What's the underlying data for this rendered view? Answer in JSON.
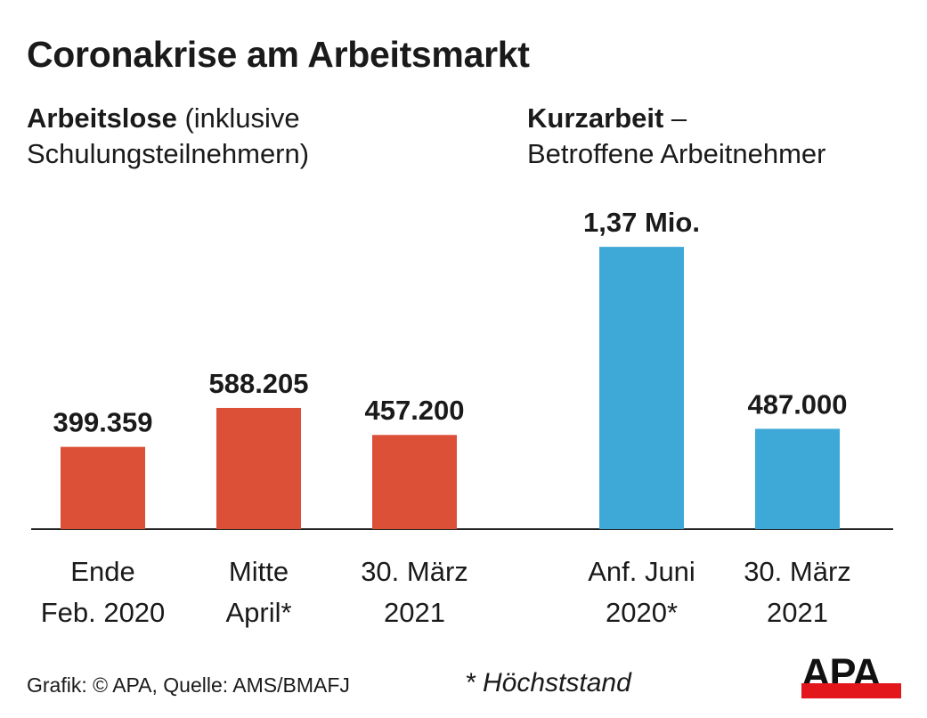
{
  "chart_data": [
    {
      "type": "bar",
      "subtitle_bold": "Arbeitslose",
      "subtitle_rest": " (inklusive",
      "subtitle_line2": "Schulungsteilnehmern)",
      "categories": [
        [
          "Ende",
          "Feb. 2020"
        ],
        [
          "Mitte",
          "April*"
        ],
        [
          "30. März",
          "2021"
        ]
      ],
      "values": [
        399359,
        588205,
        457200
      ],
      "data_labels": [
        "399.359",
        "588.205",
        "457.200"
      ],
      "color": "#db5036"
    },
    {
      "type": "bar",
      "subtitle_bold": "Kurzarbeit",
      "subtitle_rest": " –",
      "subtitle_line2": "Betroffene Arbeitnehmer",
      "categories": [
        [
          "Anf. Juni",
          "2020*"
        ],
        [
          "30. März",
          "2021"
        ]
      ],
      "values": [
        1370000,
        487000
      ],
      "data_labels": [
        "1,37 Mio.",
        "487.000"
      ],
      "color": "#3ea8d6"
    }
  ],
  "title": "Coronakrise am Arbeitsmarkt",
  "footer": "Grafik: © APA, Quelle: AMS/BMAFJ",
  "note": "* Höchststand",
  "logo": "APA",
  "grid": false
}
